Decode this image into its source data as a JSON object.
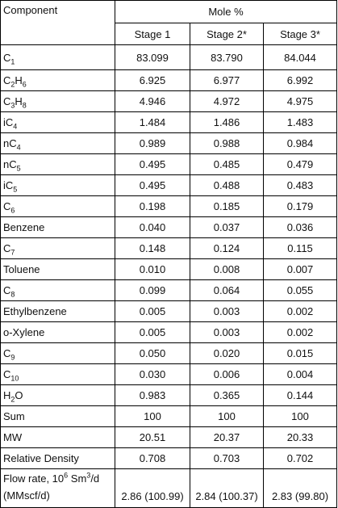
{
  "header": {
    "component_label": "Component",
    "group_label": "Mole %",
    "stages": [
      "Stage 1",
      "Stage 2*",
      "Stage 3*"
    ]
  },
  "rows": [
    {
      "base": "C",
      "sub": "1",
      "base2": "",
      "sub2": "",
      "values": [
        "83.099",
        "83.790",
        "84.044"
      ]
    },
    {
      "base": "C",
      "sub": "2",
      "base2": "H",
      "sub2": "6",
      "values": [
        "6.925",
        "6.977",
        "6.992"
      ]
    },
    {
      "base": "C",
      "sub": "3",
      "base2": "H",
      "sub2": "8",
      "values": [
        "4.946",
        "4.972",
        "4.975"
      ]
    },
    {
      "base": "iC",
      "sub": "4",
      "base2": "",
      "sub2": "",
      "values": [
        "1.484",
        "1.486",
        "1.483"
      ]
    },
    {
      "base": "nC",
      "sub": "4",
      "base2": "",
      "sub2": "",
      "values": [
        "0.989",
        "0.988",
        "0.984"
      ]
    },
    {
      "base": "nC",
      "sub": "5",
      "base2": "",
      "sub2": "",
      "values": [
        "0.495",
        "0.485",
        "0.479"
      ]
    },
    {
      "base": "iC",
      "sub": "5",
      "base2": "",
      "sub2": "",
      "values": [
        "0.495",
        "0.488",
        "0.483"
      ]
    },
    {
      "base": "C",
      "sub": "6",
      "base2": "",
      "sub2": "",
      "values": [
        "0.198",
        "0.185",
        "0.179"
      ]
    },
    {
      "base": "Benzene",
      "sub": "",
      "base2": "",
      "sub2": "",
      "values": [
        "0.040",
        "0.037",
        "0.036"
      ]
    },
    {
      "base": "C",
      "sub": "7",
      "base2": "",
      "sub2": "",
      "values": [
        "0.148",
        "0.124",
        "0.115"
      ]
    },
    {
      "base": "Toluene",
      "sub": "",
      "base2": "",
      "sub2": "",
      "values": [
        "0.010",
        "0.008",
        "0.007"
      ]
    },
    {
      "base": "C",
      "sub": "8",
      "base2": "",
      "sub2": "",
      "values": [
        "0.099",
        "0.064",
        "0.055"
      ]
    },
    {
      "base": "Ethylbenzene",
      "sub": "",
      "base2": "",
      "sub2": "",
      "values": [
        "0.005",
        "0.003",
        "0.002"
      ]
    },
    {
      "base": "o-Xylene",
      "sub": "",
      "base2": "",
      "sub2": "",
      "values": [
        "0.005",
        "0.003",
        "0.002"
      ]
    },
    {
      "base": "C",
      "sub": "9",
      "base2": "",
      "sub2": "",
      "values": [
        "0.050",
        "0.020",
        "0.015"
      ]
    },
    {
      "base": "C",
      "sub": "10",
      "base2": "",
      "sub2": "",
      "values": [
        "0.030",
        "0.006",
        "0.004"
      ]
    },
    {
      "base": "H",
      "sub": "2",
      "base2": "O",
      "sub2": "",
      "values": [
        "0.983",
        "0.365",
        "0.144"
      ]
    },
    {
      "base": "Sum",
      "sub": "",
      "base2": "",
      "sub2": "",
      "values": [
        "100",
        "100",
        "100"
      ]
    },
    {
      "base": "MW",
      "sub": "",
      "base2": "",
      "sub2": "",
      "values": [
        "20.51",
        "20.37",
        "20.33"
      ]
    },
    {
      "base": "Relative Density",
      "sub": "",
      "base2": "",
      "sub2": "",
      "values": [
        "0.708",
        "0.703",
        "0.702"
      ]
    }
  ],
  "flow": {
    "line1_a": "Flow rate, 10",
    "line1_sup": "6",
    "line1_b": " Sm",
    "line1_sup2": "3",
    "line1_c": "/d",
    "line2": "(MMscf/d)",
    "values": [
      "2.86 (100.99)",
      "2.84 (100.37)",
      "2.83 (99.80)"
    ]
  }
}
